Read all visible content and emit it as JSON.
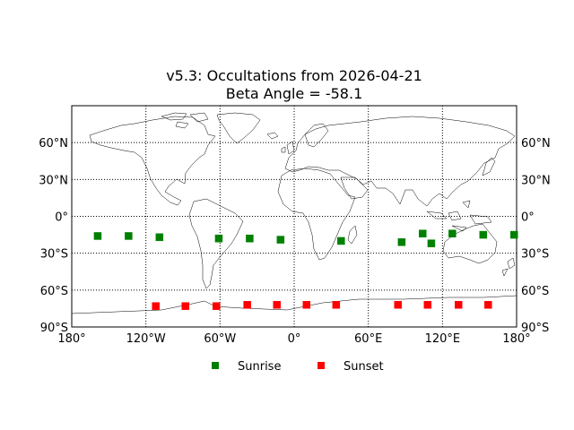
{
  "chart_data": {
    "type": "scatter",
    "title": "v5.3: Occultations from 2026-04-21",
    "subtitle": "Beta Angle = -58.1",
    "xlim": [
      -180,
      180
    ],
    "ylim": [
      -90,
      90
    ],
    "x_ticks": [
      {
        "value": -180,
        "label": "180°"
      },
      {
        "value": -120,
        "label": "120°W"
      },
      {
        "value": -60,
        "label": "60°W"
      },
      {
        "value": 0,
        "label": "0°"
      },
      {
        "value": 60,
        "label": "60°E"
      },
      {
        "value": 120,
        "label": "120°E"
      },
      {
        "value": 180,
        "label": "180°"
      }
    ],
    "y_ticks": [
      {
        "value": 60,
        "label": "60°N"
      },
      {
        "value": 30,
        "label": "30°N"
      },
      {
        "value": 0,
        "label": "0°"
      },
      {
        "value": -30,
        "label": "30°S"
      },
      {
        "value": -60,
        "label": "60°S"
      },
      {
        "value": -90,
        "label": "90°S"
      }
    ],
    "grid": true,
    "legend_position": "bottom",
    "series": [
      {
        "name": "Sunrise",
        "color": "#008000",
        "marker": "square",
        "x": [
          -159,
          -134,
          -109,
          -61,
          -36,
          -11,
          38,
          87,
          104,
          111,
          128,
          153,
          178
        ],
        "y": [
          -16,
          -16,
          -17,
          -18,
          -18,
          -19,
          -20,
          -21,
          -14,
          -22,
          -14,
          -15,
          -15
        ]
      },
      {
        "name": "Sunset",
        "color": "#ff0000",
        "marker": "square",
        "x": [
          -112,
          -88,
          -63,
          -38,
          -14,
          10,
          34,
          84,
          108,
          133,
          157
        ],
        "y": [
          -73,
          -73,
          -73,
          -72,
          -72,
          -72,
          -72,
          -72,
          -72,
          -72,
          -72
        ]
      }
    ]
  }
}
